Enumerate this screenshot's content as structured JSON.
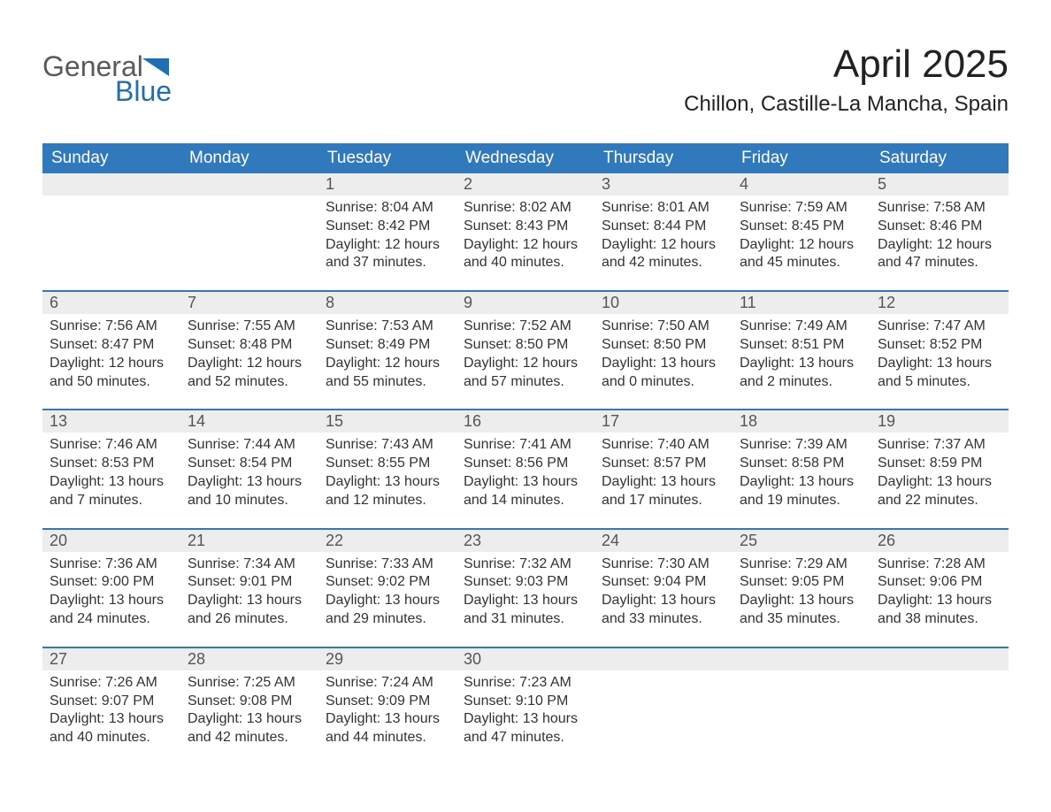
{
  "brand": {
    "word1": "General",
    "word2": "Blue",
    "accent": "#1f6fb2",
    "text_gray": "#5a5a5a"
  },
  "title": "April 2025",
  "location": "Chillon, Castille-La Mancha, Spain",
  "colors": {
    "header_bg": "#3079bd",
    "header_text": "#ffffff",
    "daynum_bg": "#ededed",
    "daynum_text": "#555555",
    "rule": "#3079bd",
    "body_text": "#333333",
    "page_bg": "#ffffff"
  },
  "typography": {
    "title_fontsize": 44,
    "location_fontsize": 24,
    "dow_fontsize": 19,
    "daynum_fontsize": 18,
    "cell_fontsize": 16
  },
  "layout": {
    "columns": 7,
    "label_sunrise": "Sunrise:",
    "label_sunset": "Sunset:",
    "label_daylight": "Daylight:"
  },
  "dow": [
    "Sunday",
    "Monday",
    "Tuesday",
    "Wednesday",
    "Thursday",
    "Friday",
    "Saturday"
  ],
  "weeks": [
    [
      null,
      null,
      {
        "n": "1",
        "sr": "8:04 AM",
        "ss": "8:42 PM",
        "dh": "12",
        "dm": "37"
      },
      {
        "n": "2",
        "sr": "8:02 AM",
        "ss": "8:43 PM",
        "dh": "12",
        "dm": "40"
      },
      {
        "n": "3",
        "sr": "8:01 AM",
        "ss": "8:44 PM",
        "dh": "12",
        "dm": "42"
      },
      {
        "n": "4",
        "sr": "7:59 AM",
        "ss": "8:45 PM",
        "dh": "12",
        "dm": "45"
      },
      {
        "n": "5",
        "sr": "7:58 AM",
        "ss": "8:46 PM",
        "dh": "12",
        "dm": "47"
      }
    ],
    [
      {
        "n": "6",
        "sr": "7:56 AM",
        "ss": "8:47 PM",
        "dh": "12",
        "dm": "50"
      },
      {
        "n": "7",
        "sr": "7:55 AM",
        "ss": "8:48 PM",
        "dh": "12",
        "dm": "52"
      },
      {
        "n": "8",
        "sr": "7:53 AM",
        "ss": "8:49 PM",
        "dh": "12",
        "dm": "55"
      },
      {
        "n": "9",
        "sr": "7:52 AM",
        "ss": "8:50 PM",
        "dh": "12",
        "dm": "57"
      },
      {
        "n": "10",
        "sr": "7:50 AM",
        "ss": "8:50 PM",
        "dh": "13",
        "dm": "0"
      },
      {
        "n": "11",
        "sr": "7:49 AM",
        "ss": "8:51 PM",
        "dh": "13",
        "dm": "2"
      },
      {
        "n": "12",
        "sr": "7:47 AM",
        "ss": "8:52 PM",
        "dh": "13",
        "dm": "5"
      }
    ],
    [
      {
        "n": "13",
        "sr": "7:46 AM",
        "ss": "8:53 PM",
        "dh": "13",
        "dm": "7"
      },
      {
        "n": "14",
        "sr": "7:44 AM",
        "ss": "8:54 PM",
        "dh": "13",
        "dm": "10"
      },
      {
        "n": "15",
        "sr": "7:43 AM",
        "ss": "8:55 PM",
        "dh": "13",
        "dm": "12"
      },
      {
        "n": "16",
        "sr": "7:41 AM",
        "ss": "8:56 PM",
        "dh": "13",
        "dm": "14"
      },
      {
        "n": "17",
        "sr": "7:40 AM",
        "ss": "8:57 PM",
        "dh": "13",
        "dm": "17"
      },
      {
        "n": "18",
        "sr": "7:39 AM",
        "ss": "8:58 PM",
        "dh": "13",
        "dm": "19"
      },
      {
        "n": "19",
        "sr": "7:37 AM",
        "ss": "8:59 PM",
        "dh": "13",
        "dm": "22"
      }
    ],
    [
      {
        "n": "20",
        "sr": "7:36 AM",
        "ss": "9:00 PM",
        "dh": "13",
        "dm": "24"
      },
      {
        "n": "21",
        "sr": "7:34 AM",
        "ss": "9:01 PM",
        "dh": "13",
        "dm": "26"
      },
      {
        "n": "22",
        "sr": "7:33 AM",
        "ss": "9:02 PM",
        "dh": "13",
        "dm": "29"
      },
      {
        "n": "23",
        "sr": "7:32 AM",
        "ss": "9:03 PM",
        "dh": "13",
        "dm": "31"
      },
      {
        "n": "24",
        "sr": "7:30 AM",
        "ss": "9:04 PM",
        "dh": "13",
        "dm": "33"
      },
      {
        "n": "25",
        "sr": "7:29 AM",
        "ss": "9:05 PM",
        "dh": "13",
        "dm": "35"
      },
      {
        "n": "26",
        "sr": "7:28 AM",
        "ss": "9:06 PM",
        "dh": "13",
        "dm": "38"
      }
    ],
    [
      {
        "n": "27",
        "sr": "7:26 AM",
        "ss": "9:07 PM",
        "dh": "13",
        "dm": "40"
      },
      {
        "n": "28",
        "sr": "7:25 AM",
        "ss": "9:08 PM",
        "dh": "13",
        "dm": "42"
      },
      {
        "n": "29",
        "sr": "7:24 AM",
        "ss": "9:09 PM",
        "dh": "13",
        "dm": "44"
      },
      {
        "n": "30",
        "sr": "7:23 AM",
        "ss": "9:10 PM",
        "dh": "13",
        "dm": "47"
      },
      null,
      null,
      null
    ]
  ]
}
